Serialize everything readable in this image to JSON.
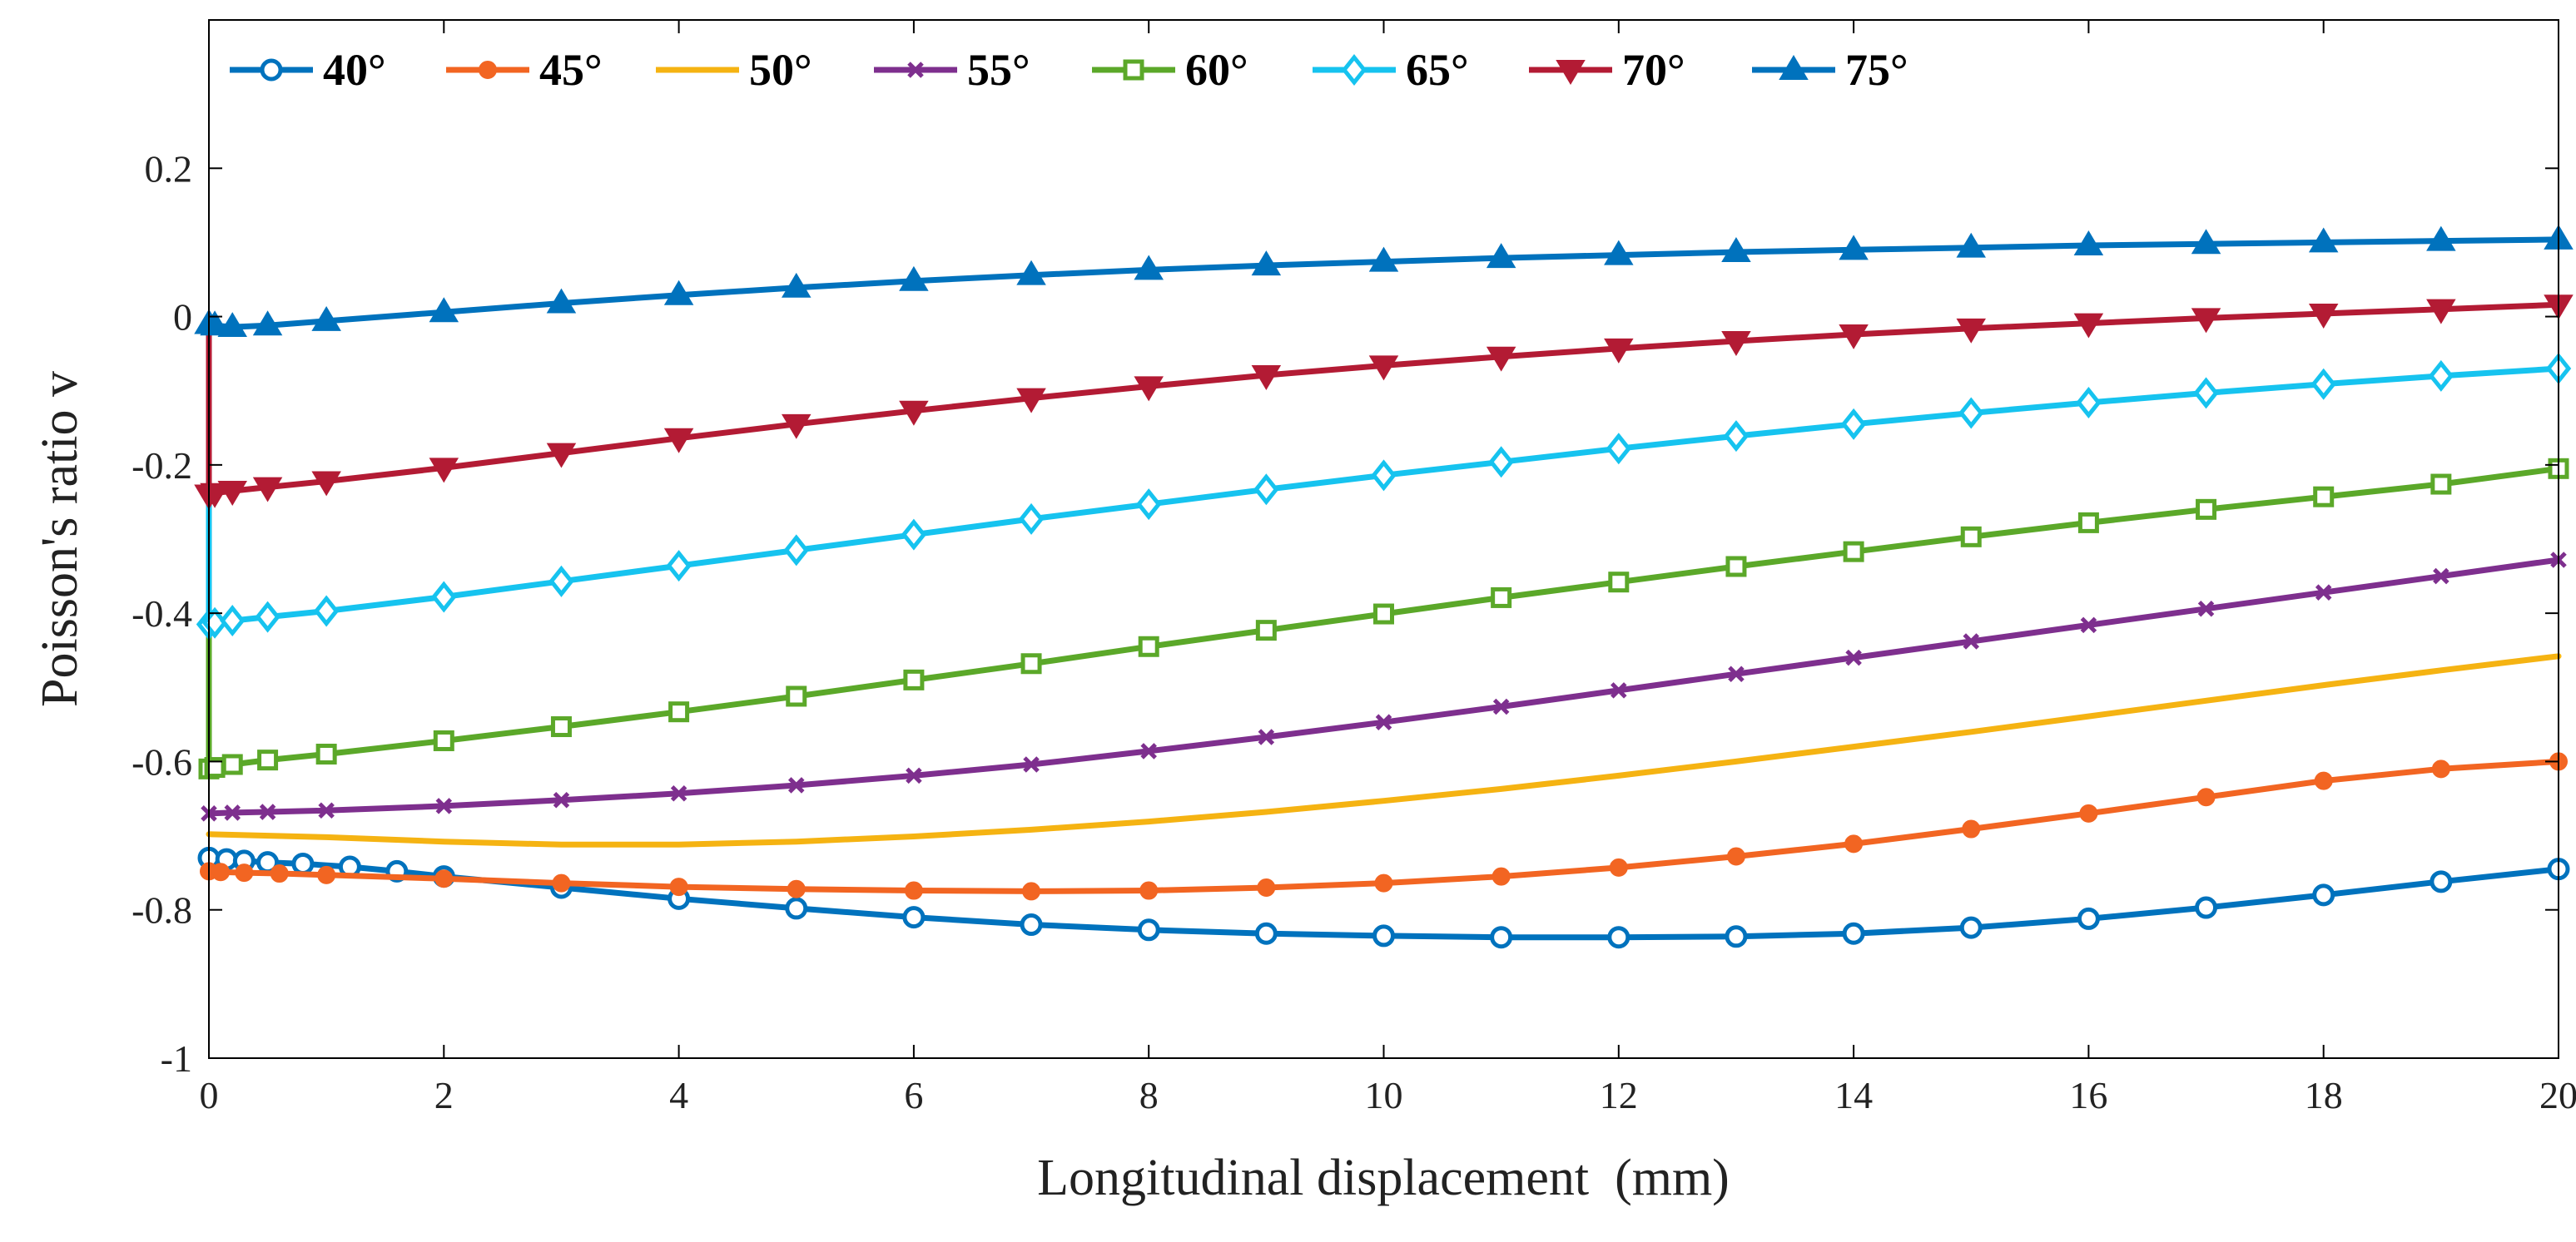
{
  "chart_data": {
    "type": "line",
    "title": "",
    "xlabel": "Longitudinal displacement  (mm)",
    "ylabel": "Poisson's ratio v",
    "xlim": [
      0,
      20
    ],
    "ylim": [
      -1,
      0.4
    ],
    "xticks": [
      0,
      2,
      4,
      6,
      8,
      10,
      12,
      14,
      16,
      18,
      20
    ],
    "yticks": [
      -1,
      -0.8,
      -0.6,
      -0.4,
      -0.2,
      0,
      0.2
    ],
    "xtick_labels": [
      "0",
      "2",
      "4",
      "6",
      "8",
      "10",
      "12",
      "14",
      "16",
      "18",
      "20"
    ],
    "ytick_labels": [
      "-1",
      "-0.8",
      "-0.6",
      "-0.4",
      "-0.2",
      "0",
      "0.2"
    ],
    "grid": false,
    "legend_position": "top",
    "series": [
      {
        "name": "40°",
        "color": "#0072BD",
        "marker": "circle",
        "x": [
          0,
          0.15,
          0.3,
          0.5,
          0.8,
          1.2,
          1.6,
          2.0,
          3,
          4,
          5,
          6,
          7,
          8,
          9,
          10,
          11,
          12,
          13,
          14,
          15,
          16,
          17,
          18,
          19,
          20
        ],
        "y": [
          -0.73,
          -0.732,
          -0.734,
          -0.736,
          -0.738,
          -0.742,
          -0.748,
          -0.755,
          -0.77,
          -0.785,
          -0.798,
          -0.81,
          -0.82,
          -0.827,
          -0.832,
          -0.835,
          -0.837,
          -0.837,
          -0.836,
          -0.832,
          -0.824,
          -0.812,
          -0.797,
          -0.78,
          -0.762,
          -0.745
        ]
      },
      {
        "name": "45°",
        "color": "#F26522",
        "marker": "dot",
        "x": [
          0,
          0.1,
          0.3,
          0.6,
          1.0,
          2,
          3,
          4,
          5,
          6,
          7,
          8,
          9,
          10,
          11,
          12,
          13,
          14,
          15,
          16,
          17,
          18,
          19,
          20
        ],
        "y": [
          -0.748,
          -0.749,
          -0.75,
          -0.751,
          -0.753,
          -0.758,
          -0.764,
          -0.769,
          -0.772,
          -0.774,
          -0.775,
          -0.774,
          -0.77,
          -0.764,
          -0.755,
          -0.743,
          -0.728,
          -0.711,
          -0.691,
          -0.67,
          -0.648,
          -0.626,
          -0.61,
          -0.6
        ]
      },
      {
        "name": "50°",
        "color": "#F5B312",
        "marker": "none",
        "x": [
          0,
          1,
          2,
          3,
          4,
          5,
          6,
          7,
          8,
          9,
          10,
          11,
          12,
          13,
          14,
          15,
          16,
          17,
          18,
          19,
          20
        ],
        "y": [
          -0.698,
          -0.702,
          -0.708,
          -0.712,
          -0.712,
          -0.708,
          -0.701,
          -0.692,
          -0.681,
          -0.668,
          -0.653,
          -0.637,
          -0.619,
          -0.6,
          -0.58,
          -0.56,
          -0.539,
          -0.518,
          -0.497,
          -0.477,
          -0.458
        ]
      },
      {
        "name": "55°",
        "color": "#7E2F8E",
        "marker": "x",
        "x": [
          0,
          0.2,
          0.5,
          1,
          2,
          3,
          4,
          5,
          6,
          7,
          8,
          9,
          10,
          11,
          12,
          13,
          14,
          15,
          16,
          17,
          18,
          19,
          20
        ],
        "y": [
          -0.67,
          -0.669,
          -0.668,
          -0.666,
          -0.66,
          -0.652,
          -0.643,
          -0.632,
          -0.619,
          -0.604,
          -0.586,
          -0.567,
          -0.547,
          -0.526,
          -0.504,
          -0.482,
          -0.46,
          -0.438,
          -0.416,
          -0.394,
          -0.372,
          -0.35,
          -0.328
        ]
      },
      {
        "name": "60°",
        "color": "#5BA829",
        "marker": "square",
        "x": [
          0,
          0.05,
          0.2,
          0.5,
          1,
          2,
          3,
          4,
          5,
          6,
          7,
          8,
          9,
          10,
          11,
          12,
          13,
          14,
          15,
          16,
          17,
          18,
          19,
          20
        ],
        "y": [
          -0.61,
          -0.608,
          -0.604,
          -0.598,
          -0.59,
          -0.572,
          -0.553,
          -0.533,
          -0.512,
          -0.49,
          -0.468,
          -0.445,
          -0.423,
          -0.401,
          -0.379,
          -0.358,
          -0.337,
          -0.317,
          -0.297,
          -0.278,
          -0.26,
          -0.243,
          -0.226,
          -0.205
        ]
      },
      {
        "name": "65°",
        "color": "#16C3EF",
        "marker": "diamond",
        "x": [
          0,
          0.05,
          0.2,
          0.5,
          1,
          2,
          3,
          4,
          5,
          6,
          7,
          8,
          9,
          10,
          11,
          12,
          13,
          14,
          15,
          16,
          17,
          18,
          19,
          20
        ],
        "y": [
          -0.415,
          -0.413,
          -0.41,
          -0.405,
          -0.397,
          -0.378,
          -0.357,
          -0.336,
          -0.315,
          -0.294,
          -0.273,
          -0.253,
          -0.233,
          -0.214,
          -0.196,
          -0.178,
          -0.161,
          -0.145,
          -0.13,
          -0.116,
          -0.103,
          -0.091,
          -0.08,
          -0.07
        ]
      },
      {
        "name": "70°",
        "color": "#B31B34",
        "marker": "triangle-down",
        "x": [
          0,
          0.05,
          0.2,
          0.5,
          1,
          2,
          3,
          4,
          5,
          6,
          7,
          8,
          9,
          10,
          11,
          12,
          13,
          14,
          15,
          16,
          17,
          18,
          19,
          20
        ],
        "y": [
          -0.24,
          -0.238,
          -0.235,
          -0.23,
          -0.222,
          -0.204,
          -0.184,
          -0.164,
          -0.145,
          -0.127,
          -0.11,
          -0.094,
          -0.079,
          -0.066,
          -0.054,
          -0.043,
          -0.033,
          -0.024,
          -0.016,
          -0.009,
          -0.002,
          0.004,
          0.01,
          0.016
        ]
      },
      {
        "name": "75°",
        "color": "#0072BD",
        "marker": "triangle-up",
        "x": [
          0,
          0.05,
          0.2,
          0.5,
          1,
          2,
          3,
          4,
          5,
          6,
          7,
          8,
          9,
          10,
          11,
          12,
          13,
          14,
          15,
          16,
          17,
          18,
          19,
          20
        ],
        "y": [
          -0.01,
          -0.012,
          -0.014,
          -0.012,
          -0.006,
          0.006,
          0.018,
          0.029,
          0.039,
          0.048,
          0.056,
          0.063,
          0.069,
          0.074,
          0.079,
          0.083,
          0.087,
          0.09,
          0.093,
          0.096,
          0.098,
          0.1,
          0.102,
          0.104
        ]
      }
    ]
  }
}
